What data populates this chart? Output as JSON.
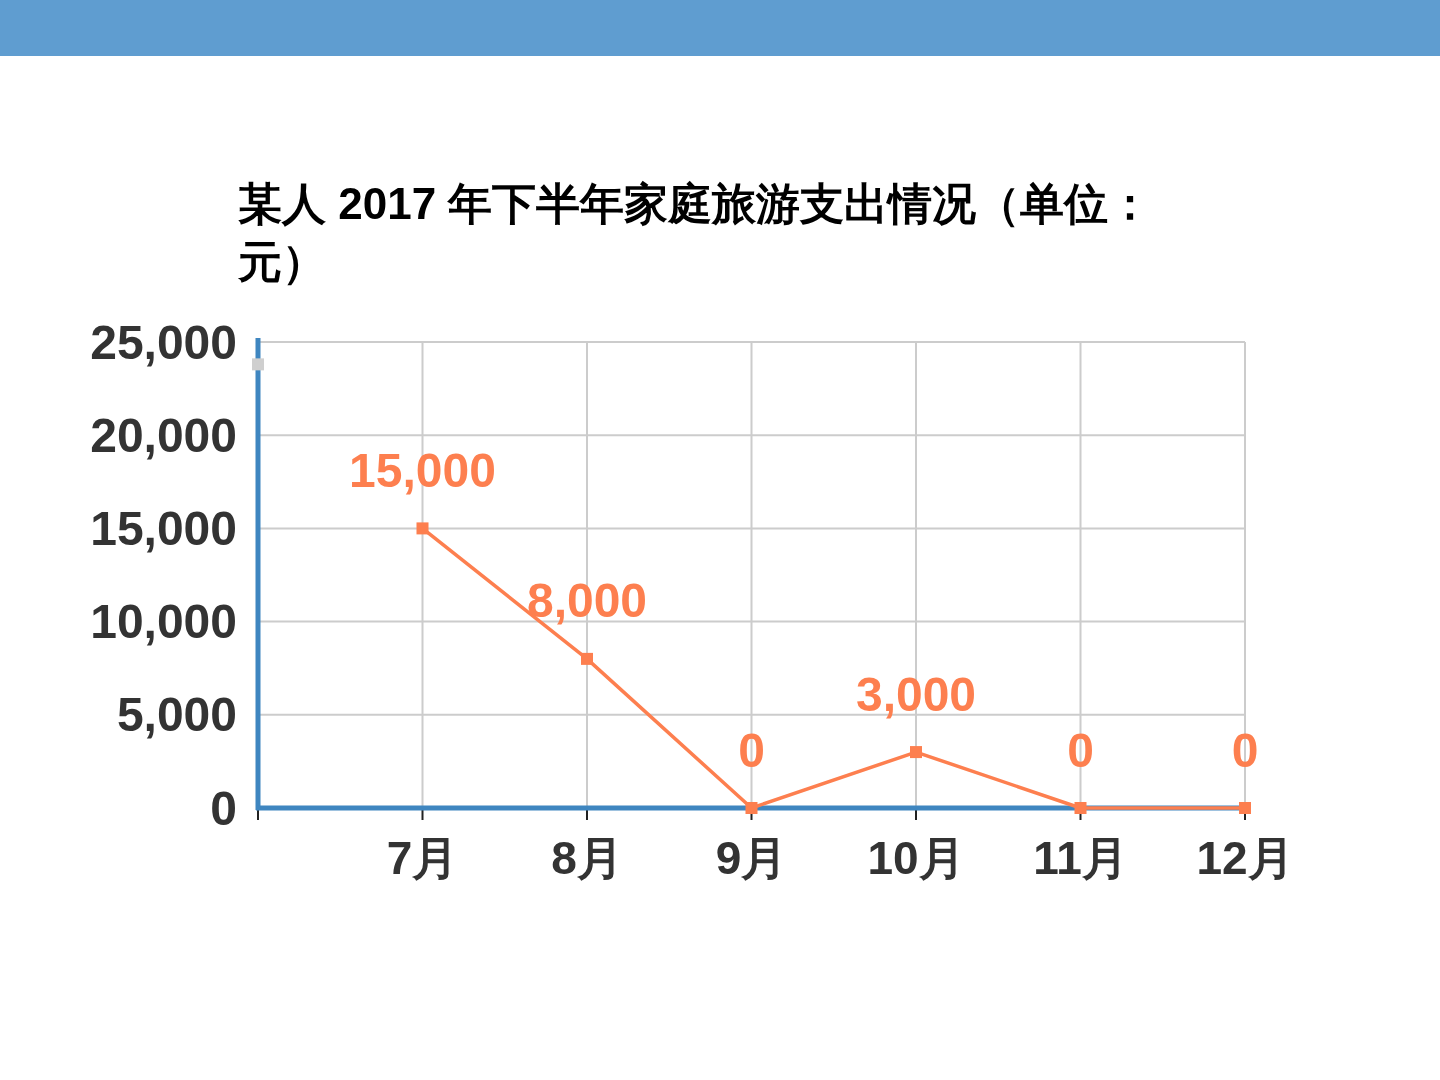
{
  "chart_data": {
    "type": "line",
    "title": "某人 2017 年下半年家庭旅游支出情况（单位：元）",
    "categories": [
      null,
      "7月",
      "8月",
      "9月",
      "10月",
      "11月",
      "12月"
    ],
    "series": [
      {
        "color": "#fd7f4f",
        "values": [
          null,
          15000,
          8000,
          0,
          3000,
          0,
          0
        ],
        "value_labels": [
          null,
          "15,000",
          "8,000",
          "0",
          "3,000",
          "0",
          "0"
        ]
      },
      {
        "type": "scatter",
        "color": "#cfcfcf",
        "values": [
          23800,
          null,
          null,
          null,
          null,
          null,
          null
        ]
      }
    ],
    "ylim": [
      0,
      25000
    ],
    "yticks": [
      {
        "value": 0,
        "label": "0"
      },
      {
        "value": 5000,
        "label": "5,000"
      },
      {
        "value": 10000,
        "label": "10,000"
      },
      {
        "value": 15000,
        "label": "15,000"
      },
      {
        "value": 20000,
        "label": "20,000"
      },
      {
        "value": 25000,
        "label": "25,000"
      }
    ],
    "grid": true,
    "marker": "square",
    "line_style": "solid"
  }
}
